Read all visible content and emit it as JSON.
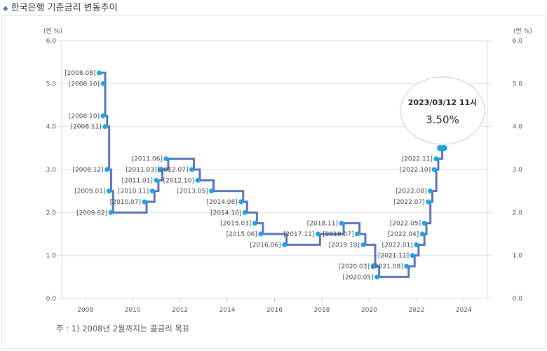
{
  "title": "한국은행 기준금리 변동추이",
  "note": "주 : 1) 2008년 2월까지는 콜금리 목표",
  "chart_data": {
    "type": "line",
    "step": true,
    "title": "",
    "ylabel_left": "(연 %)",
    "ylabel_right": "(연 %)",
    "ylim": [
      0,
      6
    ],
    "yticks": [
      "0.0",
      "1.0",
      "2.0",
      "3.0",
      "4.0",
      "5.0",
      "6.0"
    ],
    "xlim": [
      2007,
      2025
    ],
    "xticks": [
      "2008",
      "2010",
      "2012",
      "2014",
      "2016",
      "2018",
      "2020",
      "2022",
      "2024"
    ],
    "grid": true,
    "line_color": "#5b74b8",
    "point_color": "#1aa6e4",
    "points": [
      {
        "label": "[2008.08]",
        "date": "2008.08",
        "value": 5.25
      },
      {
        "label": "[2008.10]",
        "date": "2008.10",
        "value": 5.0
      },
      {
        "label": "[2008.10]",
        "date": "2008.10",
        "value": 4.25
      },
      {
        "label": "[2008.11]",
        "date": "2008.11",
        "value": 4.0
      },
      {
        "label": "[2008.12]",
        "date": "2008.12",
        "value": 3.0
      },
      {
        "label": "[2009.01]",
        "date": "2009.01",
        "value": 2.5
      },
      {
        "label": "[2009.02]",
        "date": "2009.02",
        "value": 2.0
      },
      {
        "label": "[2010.07]",
        "date": "2010.07",
        "value": 2.25
      },
      {
        "label": "[2010.11]",
        "date": "2010.11",
        "value": 2.5
      },
      {
        "label": "[2011.01]",
        "date": "2011.01",
        "value": 2.75
      },
      {
        "label": "[2011.03]",
        "date": "2011.03",
        "value": 3.0
      },
      {
        "label": "[2011.06]",
        "date": "2011.06",
        "value": 3.25
      },
      {
        "label": "[2012.07]",
        "date": "2012.07",
        "value": 3.0
      },
      {
        "label": "[2012.10]",
        "date": "2012.10",
        "value": 2.75
      },
      {
        "label": "[2013.05]",
        "date": "2013.05",
        "value": 2.5
      },
      {
        "label": "[2014.08]",
        "date": "2014.08",
        "value": 2.25
      },
      {
        "label": "[2014.10]",
        "date": "2014.10",
        "value": 2.0
      },
      {
        "label": "[2015.03]",
        "date": "2015.03",
        "value": 1.75
      },
      {
        "label": "[2015.06]",
        "date": "2015.06",
        "value": 1.5
      },
      {
        "label": "[2016.06]",
        "date": "2016.06",
        "value": 1.25
      },
      {
        "label": "[2017.11]",
        "date": "2017.11",
        "value": 1.5
      },
      {
        "label": "[2018.11]",
        "date": "2018.11",
        "value": 1.75
      },
      {
        "label": "[2019.07]",
        "date": "2019.07",
        "value": 1.5
      },
      {
        "label": "[2019.10]",
        "date": "2019.10",
        "value": 1.25
      },
      {
        "label": "[2020.03]",
        "date": "2020.03",
        "value": 0.75
      },
      {
        "label": "[2020.05]",
        "date": "2020.05",
        "value": 0.5
      },
      {
        "label": "[2021.08]",
        "date": "2021.08",
        "value": 0.75
      },
      {
        "label": "[2021.11]",
        "date": "2021.11",
        "value": 1.0
      },
      {
        "label": "[2022.01]",
        "date": "2022.01",
        "value": 1.25
      },
      {
        "label": "[2022.04]",
        "date": "2022.04",
        "value": 1.5
      },
      {
        "label": "[2022.05]",
        "date": "2022.05",
        "value": 1.75
      },
      {
        "label": "[2022.07]",
        "date": "2022.07",
        "value": 2.25
      },
      {
        "label": "[2022.08]",
        "date": "2022.08",
        "value": 2.5
      },
      {
        "label": "[2022.10]",
        "date": "2022.10",
        "value": 3.0
      },
      {
        "label": "[2022.11]",
        "date": "2022.11",
        "value": 3.25
      },
      {
        "label": "",
        "date": "2023.01",
        "value": 3.5
      },
      {
        "label": "",
        "date": "2023.03",
        "value": 3.5
      }
    ],
    "tooltip": {
      "date": "2023/03/12 11시",
      "value": "3.50%"
    }
  }
}
